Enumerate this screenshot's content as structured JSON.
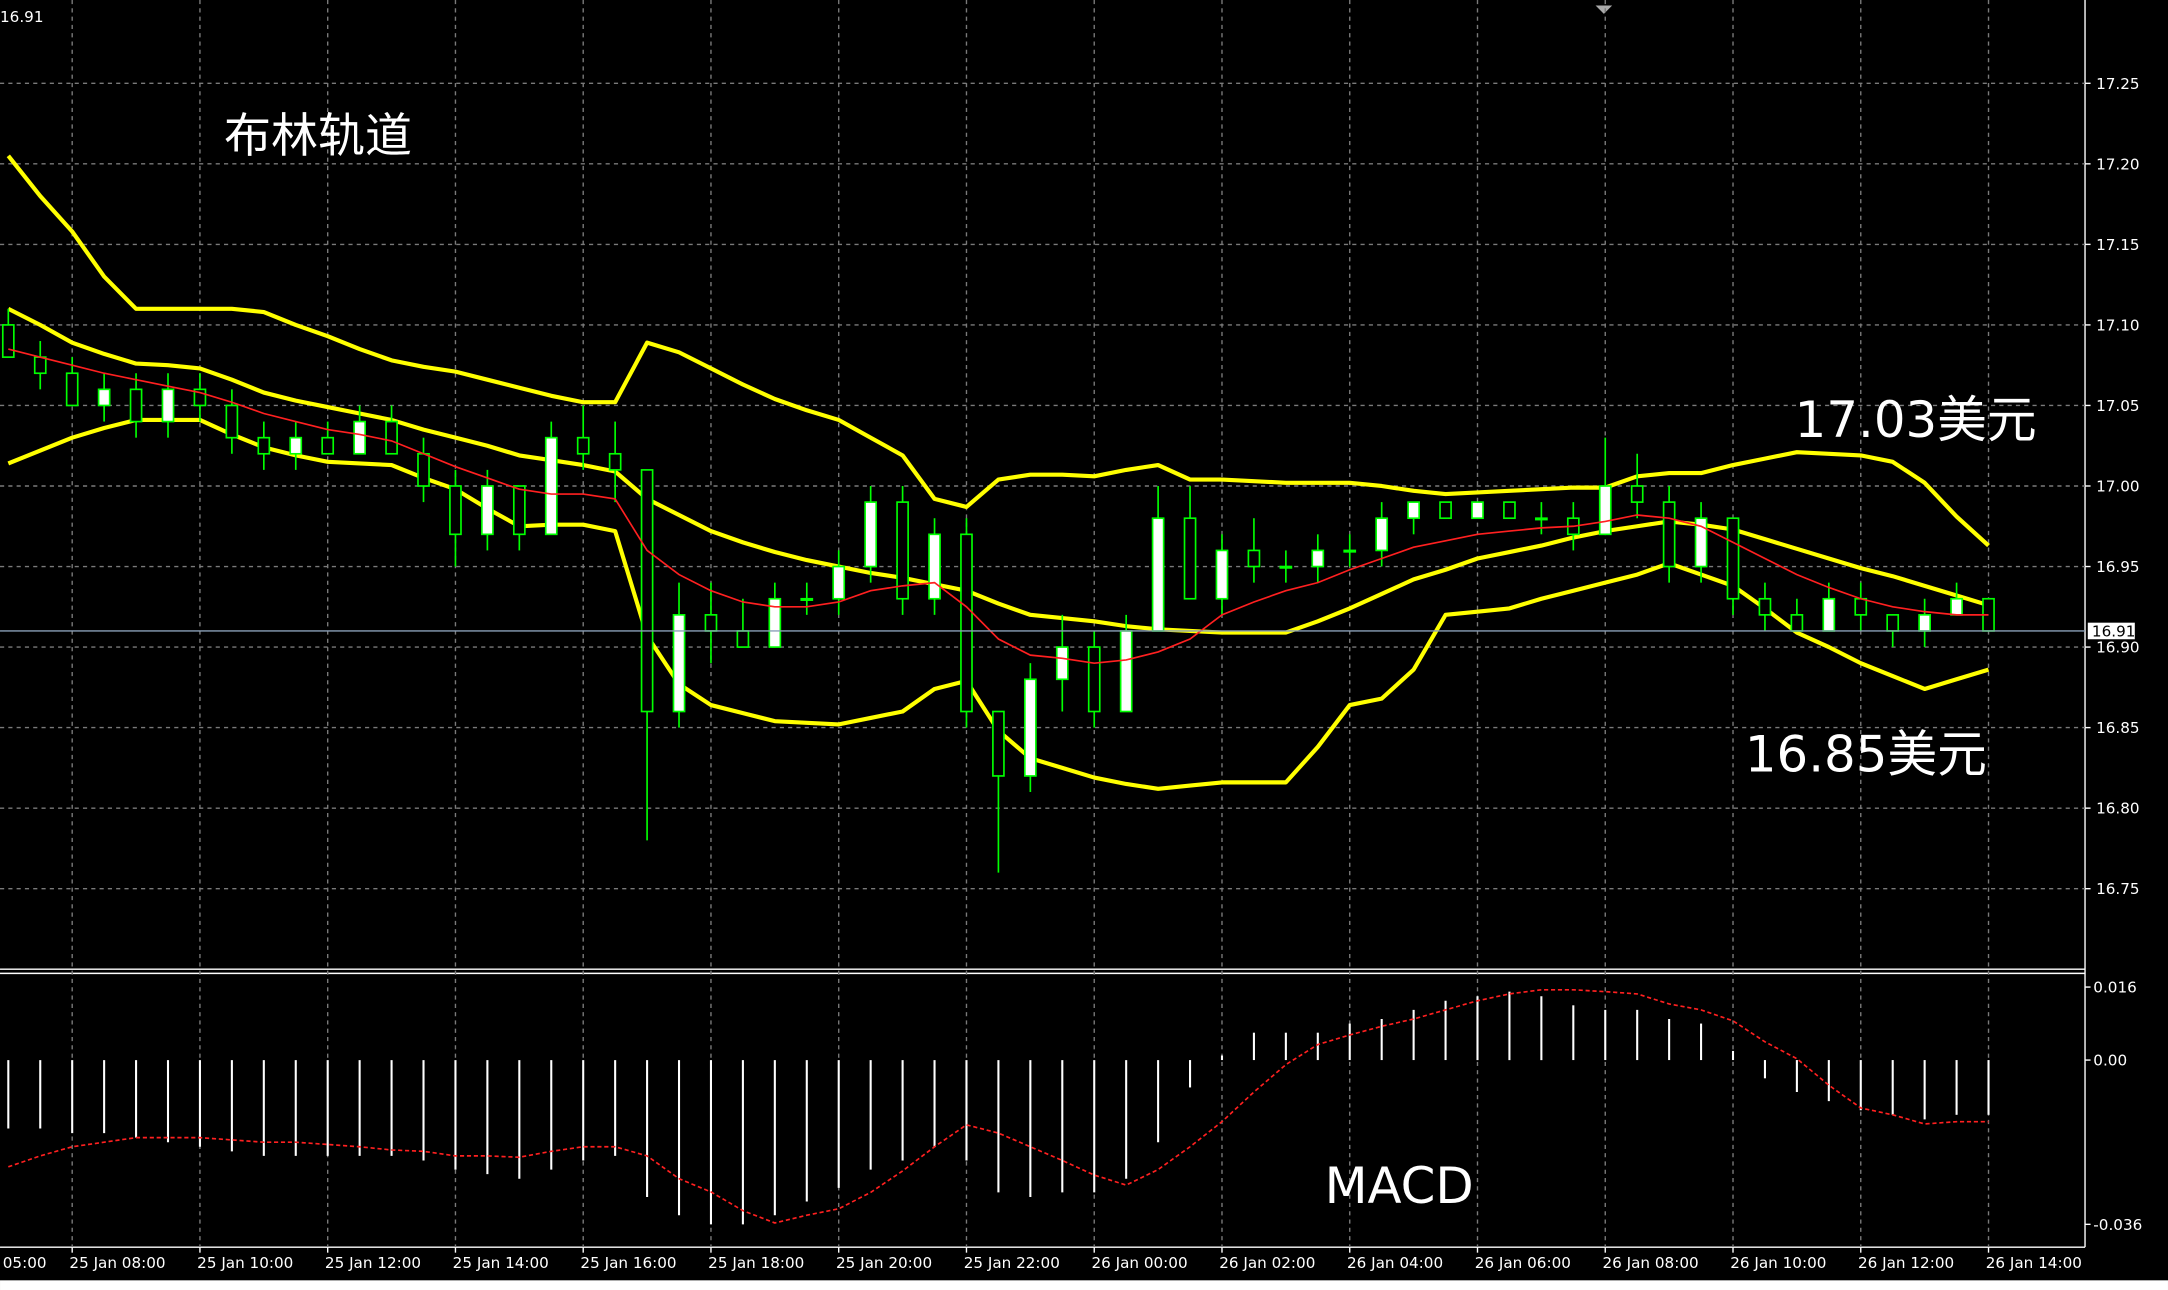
{
  "chart_data": [
    {
      "type": "candlestick",
      "title": "布林轨道",
      "annotations": [
        "17.03美元",
        "16.85美元"
      ],
      "current_price": {
        "value": 16.91,
        "label": "16.91"
      },
      "x_edge_label": "05:00",
      "categories": [
        null,
        null,
        "25 Jan 08:00",
        null,
        null,
        null,
        "25 Jan 10:00",
        null,
        null,
        null,
        "25 Jan 12:00",
        null,
        null,
        null,
        "25 Jan 14:00",
        null,
        null,
        null,
        "25 Jan 16:00",
        null,
        null,
        null,
        "25 Jan 18:00",
        null,
        null,
        null,
        "25 Jan 20:00",
        null,
        null,
        null,
        "25 Jan 22:00",
        null,
        null,
        null,
        "26 Jan 00:00",
        null,
        null,
        null,
        "26 Jan 02:00",
        null,
        null,
        null,
        "26 Jan 04:00",
        null,
        null,
        null,
        "26 Jan 06:00",
        null,
        null,
        null,
        "26 Jan 08:00",
        null,
        null,
        null,
        "26 Jan 10:00",
        null,
        null,
        null,
        "26 Jan 12:00",
        null,
        null,
        null,
        "26 Jan 14:00"
      ],
      "open": [
        17.1,
        17.08,
        17.07,
        17.05,
        17.06,
        17.04,
        17.06,
        17.05,
        17.03,
        17.02,
        17.03,
        17.02,
        17.04,
        17.02,
        17.0,
        16.97,
        17.0,
        16.97,
        17.03,
        17.02,
        17.01,
        16.86,
        16.92,
        16.91,
        16.9,
        16.93,
        16.93,
        16.95,
        16.99,
        16.93,
        16.97,
        16.86,
        16.82,
        16.88,
        16.9,
        16.86,
        16.91,
        16.98,
        16.93,
        16.96,
        16.95,
        16.95,
        16.96,
        16.96,
        16.98,
        16.99,
        16.98,
        16.99,
        16.98,
        16.98,
        16.97,
        17.0,
        16.99,
        16.95,
        16.98,
        16.93,
        16.92,
        16.91,
        16.93,
        16.92,
        16.91,
        16.92,
        16.93
      ],
      "high": [
        17.11,
        17.09,
        17.08,
        17.07,
        17.07,
        17.07,
        17.07,
        17.06,
        17.04,
        17.04,
        17.04,
        17.05,
        17.05,
        17.03,
        17.01,
        17.01,
        17.0,
        17.04,
        17.05,
        17.04,
        17.01,
        16.94,
        16.94,
        16.93,
        16.94,
        16.94,
        16.96,
        17.0,
        17.0,
        16.98,
        16.98,
        16.86,
        16.89,
        16.92,
        16.91,
        16.92,
        17.0,
        17.0,
        16.97,
        16.98,
        16.96,
        16.97,
        16.97,
        16.99,
        16.99,
        16.99,
        16.99,
        16.99,
        16.99,
        16.99,
        17.03,
        17.02,
        17.0,
        16.99,
        16.98,
        16.94,
        16.93,
        16.94,
        16.94,
        16.92,
        16.93,
        16.94,
        16.93
      ],
      "low": [
        17.08,
        17.06,
        17.05,
        17.04,
        17.03,
        17.03,
        17.04,
        17.02,
        17.01,
        17.01,
        17.02,
        17.02,
        17.02,
        16.99,
        16.95,
        16.96,
        16.96,
        16.97,
        17.01,
        16.99,
        16.78,
        16.85,
        16.89,
        16.9,
        16.9,
        16.92,
        16.92,
        16.94,
        16.92,
        16.92,
        16.85,
        16.76,
        16.81,
        16.86,
        16.85,
        16.86,
        16.91,
        16.93,
        16.92,
        16.94,
        16.94,
        16.94,
        16.95,
        16.95,
        16.97,
        16.98,
        16.98,
        16.98,
        16.97,
        16.96,
        16.97,
        16.98,
        16.94,
        16.94,
        16.92,
        16.91,
        16.91,
        16.91,
        16.91,
        16.9,
        16.9,
        16.92,
        16.91
      ],
      "close": [
        17.08,
        17.07,
        17.05,
        17.06,
        17.04,
        17.06,
        17.05,
        17.03,
        17.02,
        17.03,
        17.02,
        17.04,
        17.02,
        17.0,
        16.97,
        17.0,
        16.97,
        17.03,
        17.02,
        17.01,
        16.86,
        16.92,
        16.91,
        16.9,
        16.93,
        16.93,
        16.95,
        16.99,
        16.93,
        16.97,
        16.86,
        16.82,
        16.88,
        16.9,
        16.86,
        16.91,
        16.98,
        16.93,
        16.96,
        16.95,
        16.95,
        16.96,
        16.96,
        16.98,
        16.99,
        16.98,
        16.99,
        16.98,
        16.98,
        16.97,
        17.0,
        16.99,
        16.95,
        16.98,
        16.93,
        16.92,
        16.91,
        16.93,
        16.92,
        16.91,
        16.92,
        16.93,
        16.91
      ],
      "candle_color": "#00ff00",
      "bollinger": {
        "color": "#ffff00",
        "upper": [
          17.205,
          17.18,
          17.158,
          17.13,
          17.11,
          17.11,
          17.11,
          17.11,
          17.108,
          17.1,
          17.093,
          17.085,
          17.078,
          17.074,
          17.071,
          17.066,
          17.061,
          17.056,
          17.052,
          17.052,
          17.089,
          17.083,
          17.073,
          17.063,
          17.054,
          17.047,
          17.041,
          17.03,
          17.019,
          16.992,
          16.987,
          17.004,
          17.007,
          17.007,
          17.006,
          17.01,
          17.013,
          17.004,
          17.004,
          17.003,
          17.002,
          17.002,
          17.002,
          17.0,
          16.997,
          16.995,
          16.996,
          16.997,
          16.998,
          16.999,
          16.999,
          17.006,
          17.008,
          17.008,
          17.013,
          17.017,
          17.021,
          17.02,
          17.019,
          17.015,
          17.002,
          16.981,
          16.963
        ],
        "middle": [
          17.11,
          17.1,
          17.089,
          17.082,
          17.076,
          17.075,
          17.073,
          17.066,
          17.058,
          17.053,
          17.049,
          17.045,
          17.041,
          17.035,
          17.03,
          17.025,
          17.019,
          17.016,
          17.013,
          17.009,
          16.992,
          16.982,
          16.972,
          16.965,
          16.959,
          16.954,
          16.95,
          16.946,
          16.943,
          16.939,
          16.935,
          16.927,
          16.92,
          16.918,
          16.916,
          16.913,
          16.911,
          16.91,
          16.909,
          16.909,
          16.909,
          16.916,
          16.924,
          16.933,
          16.942,
          16.948,
          16.955,
          16.959,
          16.963,
          16.968,
          16.972,
          16.975,
          16.978,
          16.976,
          16.973,
          16.967,
          16.961,
          16.955,
          16.949,
          16.944,
          16.938,
          16.932,
          16.926
        ],
        "lower": [
          17.014,
          17.022,
          17.03,
          17.036,
          17.041,
          17.041,
          17.041,
          17.032,
          17.024,
          17.019,
          17.015,
          17.014,
          17.013,
          17.005,
          16.998,
          16.986,
          16.975,
          16.976,
          16.976,
          16.972,
          16.907,
          16.877,
          16.864,
          16.859,
          16.854,
          16.853,
          16.852,
          16.856,
          16.86,
          16.874,
          16.879,
          16.848,
          16.831,
          16.825,
          16.819,
          16.815,
          16.812,
          16.814,
          16.816,
          16.816,
          16.816,
          16.838,
          16.864,
          16.868,
          16.886,
          16.92,
          16.922,
          16.924,
          16.93,
          16.935,
          16.94,
          16.945,
          16.952,
          16.945,
          16.938,
          16.924,
          16.909,
          16.9,
          16.89,
          16.882,
          16.874,
          16.88,
          16.886
        ]
      },
      "ma": {
        "color": "#ff2020",
        "values": [
          17.085,
          17.08,
          17.075,
          17.07,
          17.066,
          17.062,
          17.058,
          17.052,
          17.045,
          17.04,
          17.035,
          17.032,
          17.028,
          17.02,
          17.012,
          17.005,
          16.998,
          16.995,
          16.995,
          16.992,
          16.96,
          16.945,
          16.935,
          16.928,
          16.925,
          16.925,
          16.928,
          16.935,
          16.938,
          16.94,
          16.925,
          16.905,
          16.895,
          16.893,
          16.89,
          16.892,
          16.897,
          16.905,
          16.92,
          16.928,
          16.935,
          16.94,
          16.948,
          16.955,
          16.962,
          16.966,
          16.97,
          16.972,
          16.974,
          16.975,
          16.978,
          16.982,
          16.98,
          16.975,
          16.965,
          16.955,
          16.945,
          16.937,
          16.93,
          16.925,
          16.922,
          16.92,
          16.92
        ]
      },
      "ylim": [
        16.7,
        17.3
      ],
      "yticks": [
        16.75,
        {
          "value": 16.8,
          "label": "16.80"
        },
        16.85,
        {
          "value": 16.9,
          "label": "16.90"
        },
        16.95,
        {
          "value": 17.0,
          "label": "17.00"
        },
        17.05,
        {
          "value": 17.1,
          "label": "17.10"
        },
        17.15,
        {
          "value": 17.2,
          "label": "17.20"
        },
        17.25
      ],
      "grid": true
    },
    {
      "type": "macd",
      "title": "MACD",
      "histogram": [
        -0.015,
        -0.015,
        -0.016,
        -0.016,
        -0.017,
        -0.018,
        -0.019,
        -0.02,
        -0.021,
        -0.021,
        -0.021,
        -0.021,
        -0.021,
        -0.022,
        -0.024,
        -0.025,
        -0.026,
        -0.024,
        -0.022,
        -0.021,
        -0.03,
        -0.034,
        -0.036,
        -0.036,
        -0.034,
        -0.031,
        -0.028,
        -0.024,
        -0.022,
        -0.019,
        -0.022,
        -0.029,
        -0.03,
        -0.029,
        -0.029,
        -0.026,
        -0.018,
        -0.006,
        0.001,
        0.006,
        0.006,
        0.006,
        0.008,
        0.009,
        0.011,
        0.013,
        0.014,
        0.015,
        0.014,
        0.012,
        0.011,
        0.011,
        0.009,
        0.008,
        0.002,
        -0.004,
        -0.007,
        -0.009,
        -0.011,
        -0.012,
        -0.013,
        -0.012,
        -0.012
      ],
      "histogram_color": "#ffffff",
      "signal": [
        -0.0234,
        -0.021,
        -0.019,
        -0.018,
        -0.017,
        -0.017,
        -0.017,
        -0.0175,
        -0.018,
        -0.018,
        -0.0185,
        -0.019,
        -0.0197,
        -0.02,
        -0.021,
        -0.021,
        -0.0213,
        -0.02,
        -0.019,
        -0.019,
        -0.021,
        -0.026,
        -0.0289,
        -0.033,
        -0.0357,
        -0.034,
        -0.0326,
        -0.029,
        -0.0243,
        -0.019,
        -0.0142,
        -0.016,
        -0.019,
        -0.022,
        -0.0252,
        -0.0274,
        -0.024,
        -0.019,
        -0.0135,
        -0.007,
        -0.001,
        0.0034,
        0.0055,
        0.0074,
        0.009,
        0.011,
        0.013,
        0.0145,
        0.0154,
        0.0154,
        0.015,
        0.0145,
        0.0123,
        0.011,
        0.0086,
        0.004,
        0.0003,
        -0.0055,
        -0.0105,
        -0.012,
        -0.014,
        -0.0135,
        -0.0135
      ],
      "signal_color": "#ff2020",
      "ylim": [
        -0.041,
        0.019
      ],
      "yticks": [
        -0.036,
        {
          "value": 0,
          "label": "0.00"
        },
        0.016
      ]
    }
  ]
}
